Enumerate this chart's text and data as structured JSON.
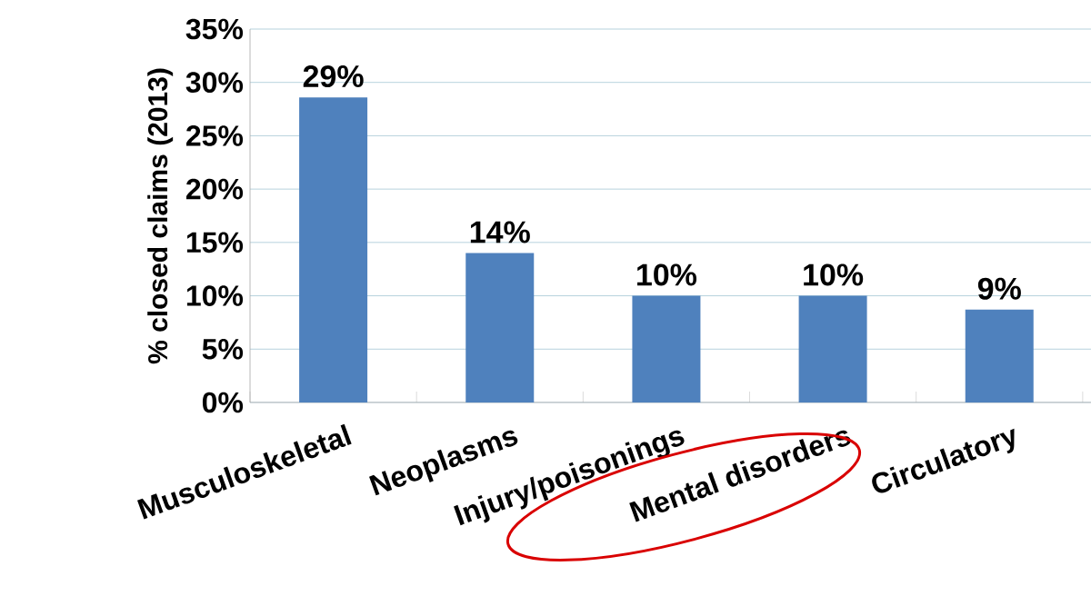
{
  "chart_data": {
    "type": "bar",
    "ylabel": "% closed claims (2013)",
    "categories": [
      "Musculoskeletal",
      "Neoplasms",
      "Injury/poisonings",
      "Mental disorders",
      "Circulatory"
    ],
    "values": [
      28.6,
      14,
      10,
      10,
      8.7
    ],
    "value_labels": [
      "29%",
      "14%",
      "10%",
      "10%",
      "9%"
    ],
    "color": "#4f81bd",
    "ylim": [
      0,
      35
    ],
    "yticks": [
      {
        "value": 0,
        "label": "0%"
      },
      {
        "value": 5,
        "label": "5%"
      },
      {
        "value": 10,
        "label": "10%"
      },
      {
        "value": 15,
        "label": "15%"
      },
      {
        "value": 20,
        "label": "20%"
      },
      {
        "value": 25,
        "label": "25%"
      },
      {
        "value": 30,
        "label": "30%"
      },
      {
        "value": 35,
        "label": "35%"
      }
    ],
    "grid": "y"
  }
}
